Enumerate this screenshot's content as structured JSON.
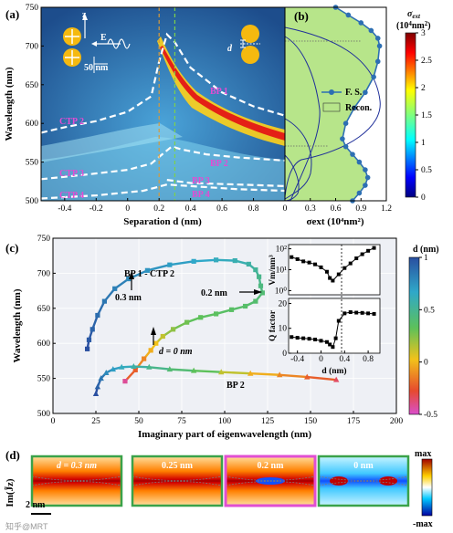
{
  "chart_data": [
    {
      "panel": "(a)",
      "type": "heatmap",
      "xlabel": "Separation d (nm)",
      "ylabel": "Wavelength (nm)",
      "xlim": [
        -0.55,
        1.0
      ],
      "ylim": [
        500,
        750
      ],
      "xticks": [
        "-0.4",
        "-0.2",
        "0",
        "0.2",
        "0.4",
        "0.6",
        "0.8"
      ],
      "yticks": [
        "500",
        "550",
        "600",
        "650",
        "700",
        "750"
      ],
      "annotations": [
        "CTP 2",
        "CTP 3",
        "CTP 4",
        "BP 1",
        "BP 2",
        "BP 3",
        "BP 4",
        "E",
        "z",
        "50 nm",
        "d"
      ],
      "dashed_curves": [
        {
          "name": "CTP 2",
          "x": [
            -0.55,
            -0.4,
            -0.2,
            0.0,
            0.15,
            0.2,
            0.25,
            0.3,
            0.4,
            0.6,
            0.8,
            1.0
          ],
          "y": [
            588,
            595,
            603,
            615,
            635,
            680,
            715,
            705,
            672,
            640,
            622,
            610
          ]
        },
        {
          "name": "CTP 3",
          "x": [
            -0.55,
            -0.3,
            0.0,
            0.15,
            0.22,
            0.28,
            0.35,
            0.5,
            0.7,
            1.0
          ],
          "y": [
            528,
            533,
            540,
            548,
            560,
            570,
            566,
            560,
            556,
            552
          ]
        },
        {
          "name": "CTP 4",
          "x": [
            -0.55,
            -0.2,
            0.1,
            0.25,
            0.4,
            0.7,
            1.0
          ],
          "y": [
            503,
            507,
            513,
            521,
            519,
            515,
            513
          ]
        },
        {
          "name": "BP 3",
          "x": [
            0.25,
            0.4,
            0.7,
            1.0
          ],
          "y": [
            527,
            523,
            521,
            519
          ]
        }
      ],
      "vlines": [
        0.2,
        0.3
      ]
    },
    {
      "panel": "(b)",
      "type": "line",
      "xlabel": "σext (10⁴nm²)",
      "xlim": [
        0,
        1.2
      ],
      "ylim": [
        500,
        750
      ],
      "xticks": [
        "0",
        "0.3",
        "0.6",
        "0.9",
        "1.2"
      ],
      "legend": [
        "F. S.",
        "Recon."
      ],
      "series": [
        {
          "name": "F. S.",
          "x": [
            0.8,
            0.88,
            0.95,
            0.98,
            0.95,
            0.88,
            0.8,
            0.72,
            0.68,
            0.72,
            0.82,
            0.95,
            1.05,
            1.1,
            1.12,
            1.1,
            1.02,
            0.9,
            0.75,
            0.6
          ],
          "y": [
            500,
            510,
            520,
            530,
            540,
            550,
            560,
            570,
            580,
            600,
            620,
            640,
            660,
            680,
            700,
            710,
            720,
            730,
            740,
            750
          ]
        }
      ],
      "colorbar": {
        "label": "σext (10⁴nm²)",
        "ticks": [
          "0",
          "0.5",
          "1",
          "1.5",
          "2",
          "2.5",
          "3"
        ]
      }
    },
    {
      "panel": "(c)",
      "type": "scatter",
      "xlabel": "Imaginary part of eigenwavelength (nm)",
      "ylabel": "Wavelength (nm)",
      "xlim": [
        0,
        200
      ],
      "ylim": [
        500,
        750
      ],
      "xticks": [
        "0",
        "25",
        "50",
        "75",
        "100",
        "125",
        "150",
        "175",
        "200"
      ],
      "yticks": [
        "500",
        "550",
        "600",
        "650",
        "700",
        "750"
      ],
      "annotations": [
        "BP 1 - CTP 2",
        "0.3 nm",
        "0.2 nm",
        "d = 0 nm",
        "BP 2"
      ],
      "series": [
        {
          "name": "BP 1 - CTP 2",
          "x": [
            20,
            21,
            23,
            26,
            30,
            36,
            44,
            55,
            68,
            82,
            95,
            106,
            114,
            118,
            120,
            121,
            122,
            118,
            112,
            104,
            95,
            86,
            78,
            70,
            64,
            60,
            57,
            53,
            48,
            42
          ],
          "y": [
            592,
            605,
            620,
            640,
            660,
            678,
            692,
            704,
            712,
            717,
            719,
            718,
            713,
            705,
            695,
            682,
            672,
            660,
            653,
            648,
            642,
            637,
            630,
            620,
            610,
            600,
            590,
            578,
            562,
            546
          ],
          "d": [
            1.0,
            0.95,
            0.9,
            0.85,
            0.8,
            0.75,
            0.7,
            0.65,
            0.6,
            0.55,
            0.5,
            0.45,
            0.4,
            0.35,
            0.3,
            0.25,
            0.2,
            0.18,
            0.16,
            0.14,
            0.12,
            0.1,
            0.08,
            0.05,
            0.0,
            -0.05,
            -0.1,
            -0.2,
            -0.3,
            -0.45
          ]
        },
        {
          "name": "BP 2",
          "x": [
            25,
            26,
            28,
            31,
            35,
            40,
            47,
            56,
            68,
            82,
            98,
            115,
            132,
            148,
            165
          ],
          "y": [
            528,
            538,
            550,
            558,
            563,
            566,
            567,
            566,
            563,
            561,
            559,
            557,
            555,
            552,
            548
          ],
          "d": [
            1.0,
            0.9,
            0.8,
            0.7,
            0.6,
            0.5,
            0.4,
            0.3,
            0.2,
            0.1,
            0.0,
            -0.1,
            -0.2,
            -0.3,
            -0.4
          ]
        }
      ],
      "colorbar": {
        "label": "d (nm)",
        "ticks": [
          "1",
          "0.5",
          "0",
          "-0.5"
        ]
      }
    },
    {
      "panel": "(c) inset top",
      "type": "line",
      "ylabel": "Vm/nm³",
      "xlim": [
        -0.55,
        1.0
      ],
      "yticks": [
        "10⁰",
        "10¹",
        "10²"
      ],
      "series": [
        {
          "name": "Vm",
          "x": [
            -0.5,
            -0.4,
            -0.3,
            -0.2,
            -0.1,
            0.0,
            0.1,
            0.15,
            0.2,
            0.3,
            0.4,
            0.5,
            0.6,
            0.7,
            0.8,
            0.9
          ],
          "y": [
            40,
            32,
            25,
            22,
            18,
            13,
            8,
            4,
            3,
            6,
            12,
            20,
            35,
            55,
            80,
            110
          ]
        }
      ]
    },
    {
      "panel": "(c) inset bottom",
      "type": "line",
      "xlabel": "d (nm)",
      "ylabel": "Q factor",
      "xlim": [
        -0.55,
        1.0
      ],
      "xticks": [
        "-0.4",
        "0",
        "0.4",
        "0.8"
      ],
      "yticks": [
        "0",
        "10",
        "20"
      ],
      "series": [
        {
          "name": "Q",
          "x": [
            -0.5,
            -0.4,
            -0.3,
            -0.2,
            -0.1,
            0.0,
            0.1,
            0.15,
            0.2,
            0.25,
            0.3,
            0.4,
            0.5,
            0.6,
            0.7,
            0.8,
            0.9
          ],
          "y": [
            6.5,
            6.2,
            6.0,
            5.8,
            5.5,
            5.0,
            4.5,
            3.5,
            2.5,
            6,
            13,
            16,
            16.5,
            16.3,
            16.2,
            16.0,
            15.8
          ]
        }
      ]
    }
  ],
  "panel_d": {
    "label": "(d)",
    "ylabel": "Im(J̃z)",
    "scale": "2 nm",
    "panels": [
      "d = 0.3 nm",
      "0.25 nm",
      "0.2 nm",
      "0 nm"
    ],
    "colorbar": [
      "max",
      "-max"
    ]
  },
  "watermark": "知乎@MRT",
  "colors": {
    "bp1_line": "#2c5fb0",
    "recon_fill": "#b7e58a",
    "fs_line": "#2d6fb3",
    "panel_d_border": "#3aa24a",
    "panel_d_highlight": "#e04fd2"
  }
}
